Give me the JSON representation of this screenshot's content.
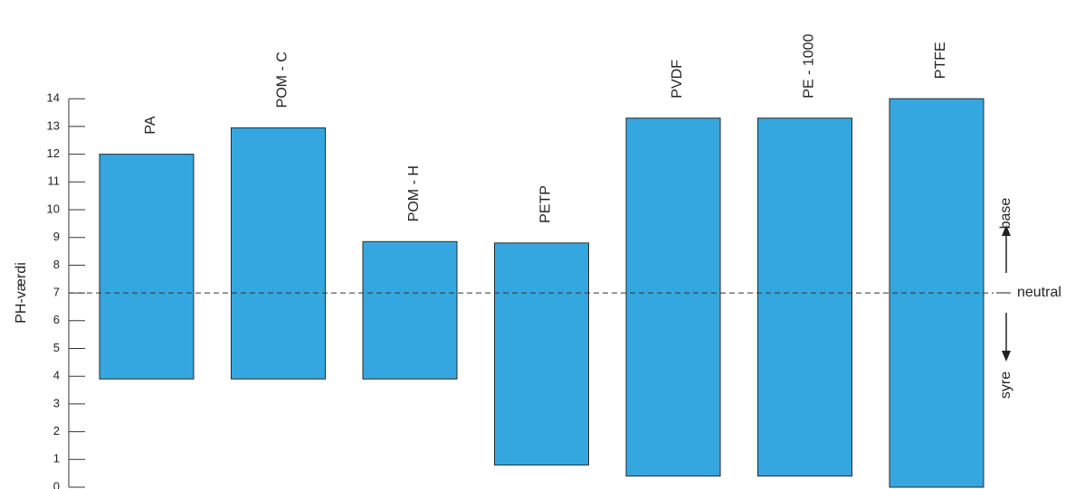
{
  "chart_data": {
    "type": "bar",
    "subtype": "floating-range",
    "title": "",
    "xlabel": "",
    "ylabel": "PH-værdi",
    "ylim": [
      0,
      14
    ],
    "y_ticks": [
      "0",
      "1",
      "2",
      "3",
      "4",
      "5",
      "6",
      "7",
      "8",
      "9",
      "10",
      "11",
      "12",
      "13",
      "14"
    ],
    "grid": false,
    "categories": [
      "PA",
      "POM - C",
      "POM - H",
      "PETP",
      "PVDF",
      "PE - 1000",
      "PTFE"
    ],
    "ranges": [
      {
        "low": 3.9,
        "high": 12.0
      },
      {
        "low": 3.9,
        "high": 12.95
      },
      {
        "low": 3.9,
        "high": 8.85
      },
      {
        "low": 0.8,
        "high": 8.8
      },
      {
        "low": 0.4,
        "high": 13.3
      },
      {
        "low": 0.4,
        "high": 13.3
      },
      {
        "low": 0.0,
        "high": 14.0
      }
    ],
    "bar_color": "#35a7e0",
    "reference_line": {
      "value": 7,
      "label": "neutral",
      "style": "dashed"
    },
    "annotations": {
      "up_label": "base",
      "down_label": "syre"
    }
  }
}
